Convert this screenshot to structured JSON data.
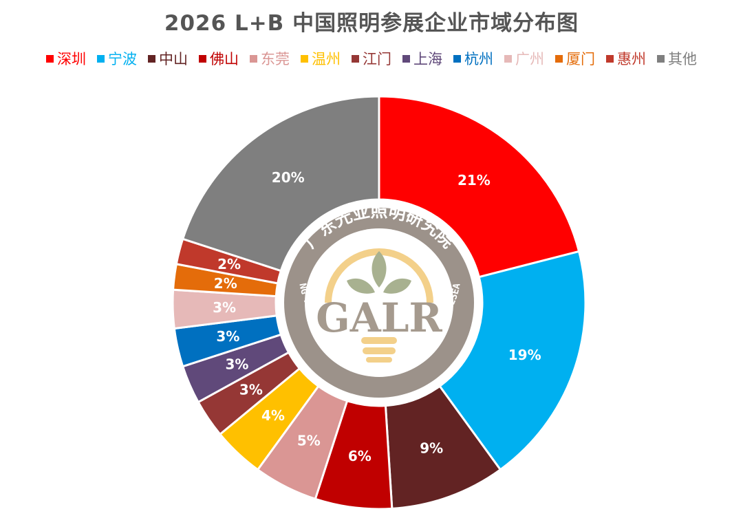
{
  "chart_data": {
    "type": "pie",
    "title": "2026 L+B 中国照明参展企业市域分布图",
    "legend_position": "top",
    "categories": [
      "深圳",
      "宁波",
      "中山",
      "佛山",
      "东莞",
      "温州",
      "江门",
      "上海",
      "杭州",
      "广州",
      "厦门",
      "惠州",
      "其他"
    ],
    "values": [
      21,
      19,
      9,
      6,
      5,
      4,
      3,
      3,
      3,
      3,
      2,
      2,
      20
    ],
    "data_labels": [
      "21%",
      "19%",
      "9%",
      "6%",
      "5%",
      "4%",
      "3%",
      "3%",
      "3%",
      "3%",
      "2%",
      "2%",
      "20%"
    ],
    "colors": [
      "#ff0000",
      "#00b0f0",
      "#622323",
      "#c00000",
      "#da9694",
      "#ffc000",
      "#953735",
      "#60497a",
      "#0070c0",
      "#e6b9b8",
      "#e46c0a",
      "#c0392b",
      "#7f7f7f"
    ]
  },
  "logo": {
    "text": "GALR",
    "ring_cn": "广东光亚照明研究院",
    "ring_en": "GUANG DONG GUANGYA ACADEMY OF LIGHTING RESEARCH"
  }
}
